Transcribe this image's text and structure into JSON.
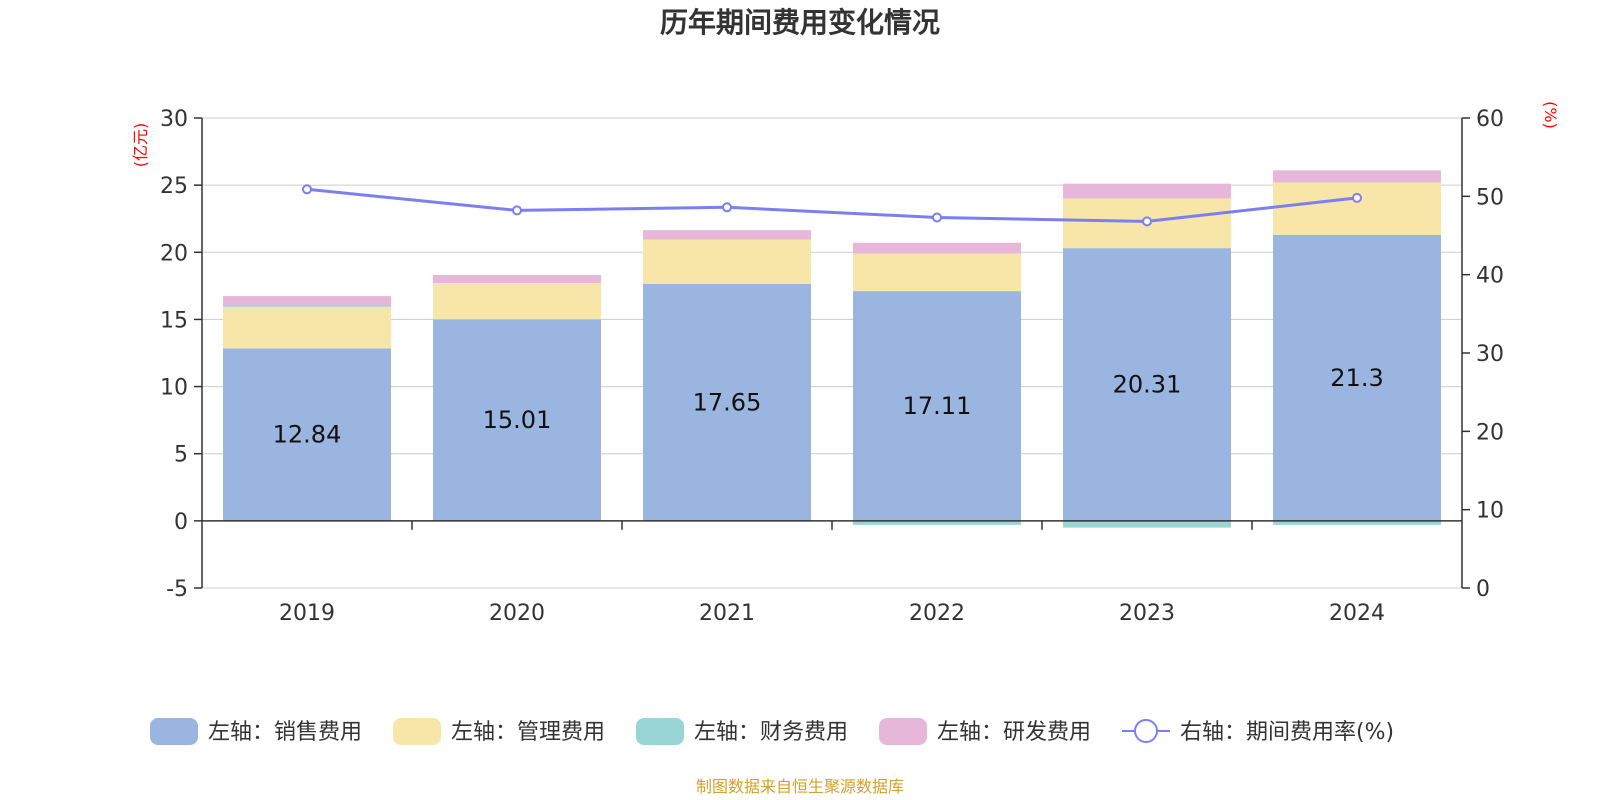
{
  "title": "历年期间费用变化情况",
  "left_unit": "(亿元)",
  "right_unit": "(%)",
  "source": "制图数据来自恒生聚源数据库",
  "colors": {
    "sales": "#9ab6e0",
    "admin": "#f8e6a8",
    "finance": "#99d5d4",
    "rd": "#e6b7d8",
    "rate": "#7b7ff0"
  },
  "chart_data": {
    "type": "bar",
    "stacked": true,
    "categories": [
      "2019",
      "2020",
      "2021",
      "2022",
      "2023",
      "2024"
    ],
    "series": [
      {
        "name": "左轴：销售费用",
        "key": "sales",
        "axis": "left",
        "values": [
          12.84,
          15.01,
          17.65,
          17.11,
          20.31,
          21.3
        ],
        "labels": [
          "12.84",
          "15.01",
          "17.65",
          "17.11",
          "20.31",
          "21.3"
        ]
      },
      {
        "name": "左轴：管理费用",
        "key": "admin",
        "axis": "left",
        "values": [
          3.1,
          2.7,
          3.3,
          2.8,
          3.7,
          3.9
        ]
      },
      {
        "name": "左轴：财务费用",
        "key": "finance",
        "axis": "left",
        "values": [
          0.1,
          0.0,
          0.0,
          -0.3,
          -0.5,
          -0.3
        ]
      },
      {
        "name": "左轴：研发费用",
        "key": "rd",
        "axis": "left",
        "values": [
          0.7,
          0.6,
          0.7,
          0.8,
          1.1,
          0.9
        ]
      },
      {
        "name": "右轴：期间费用率(%)",
        "key": "rate",
        "axis": "right",
        "type": "line",
        "values": [
          50.9,
          48.2,
          48.6,
          47.3,
          46.8,
          49.8
        ]
      }
    ],
    "y_left": {
      "range": [
        -5,
        30
      ],
      "ticks": [
        "-5",
        "0",
        "5",
        "10",
        "15",
        "20",
        "25",
        "30"
      ]
    },
    "y_right": {
      "range": [
        0,
        60
      ],
      "ticks": [
        "0",
        "10",
        "20",
        "30",
        "40",
        "50",
        "60"
      ]
    },
    "grid": true,
    "legend_position": "bottom"
  }
}
